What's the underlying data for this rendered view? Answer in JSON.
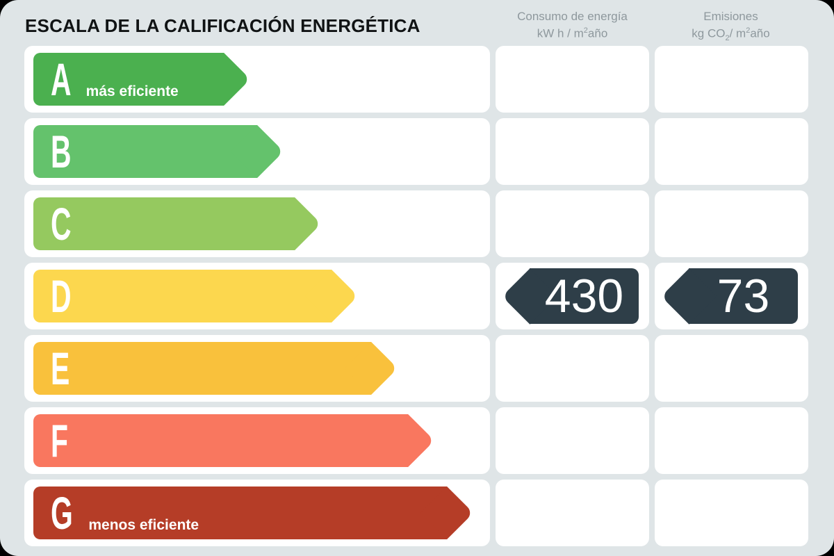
{
  "title": "ESCALA DE LA CALIFICACIÓN ENERGÉTICA",
  "columns": [
    {
      "id": "consumption",
      "line1": "Consumo de energía",
      "unit": {
        "pre": "kW h / m",
        "sup": "2",
        "post": "año"
      }
    },
    {
      "id": "emissions",
      "line1": "Emisiones",
      "unit": {
        "pre": "kg CO",
        "sub": "2",
        "mid": "/ m",
        "sup": "2",
        "post": "año"
      }
    }
  ],
  "ratings": [
    {
      "letter": "A",
      "label": "más eficiente",
      "color": "#4bb04f",
      "arrow_width": 312
    },
    {
      "letter": "B",
      "label": "",
      "color": "#64c26c",
      "arrow_width": 360
    },
    {
      "letter": "C",
      "label": "",
      "color": "#95c95f",
      "arrow_width": 414
    },
    {
      "letter": "D",
      "label": "",
      "color": "#fcd74e",
      "arrow_width": 467
    },
    {
      "letter": "E",
      "label": "",
      "color": "#f9c13c",
      "arrow_width": 524
    },
    {
      "letter": "F",
      "label": "",
      "color": "#f9775f",
      "arrow_width": 577
    },
    {
      "letter": "G",
      "label": "menos eficiente",
      "color": "#b53d27",
      "arrow_width": 633
    }
  ],
  "result": {
    "rating_letter": "D",
    "rating_index": 3,
    "consumption_value": "430",
    "emissions_value": "73",
    "arrow_color": "#2e3e48"
  },
  "colors": {
    "page_bg": "#dfe5e7",
    "cell_bg": "#ffffff",
    "header_text": "#8e989d",
    "title_text": "#101314"
  }
}
